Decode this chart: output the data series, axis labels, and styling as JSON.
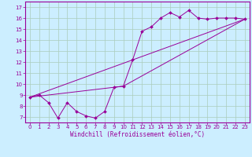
{
  "xlabel": "Windchill (Refroidissement éolien,°C)",
  "background_color": "#cceeff",
  "grid_color": "#aaccbb",
  "line_color": "#990099",
  "spine_color": "#990099",
  "xlim": [
    -0.5,
    23.5
  ],
  "ylim": [
    6.5,
    17.5
  ],
  "xticks": [
    0,
    1,
    2,
    3,
    4,
    5,
    6,
    7,
    8,
    9,
    10,
    11,
    12,
    13,
    14,
    15,
    16,
    17,
    18,
    19,
    20,
    21,
    22,
    23
  ],
  "yticks": [
    7,
    8,
    9,
    10,
    11,
    12,
    13,
    14,
    15,
    16,
    17
  ],
  "line1_x": [
    0,
    1,
    2,
    3,
    4,
    5,
    6,
    7,
    8,
    9,
    10,
    11,
    12,
    13,
    14,
    15,
    16,
    17,
    18,
    19,
    20,
    21,
    22,
    23
  ],
  "line1_y": [
    8.8,
    9.0,
    8.3,
    6.9,
    8.3,
    7.5,
    7.1,
    6.9,
    7.5,
    9.7,
    9.8,
    12.2,
    14.8,
    15.2,
    16.0,
    16.5,
    16.1,
    16.7,
    16.0,
    15.9,
    16.0,
    16.0,
    16.0,
    15.9
  ],
  "line2_x": [
    0,
    23
  ],
  "line2_y": [
    8.8,
    15.9
  ],
  "line3_x": [
    0,
    10,
    23
  ],
  "line3_y": [
    8.8,
    9.8,
    15.9
  ],
  "xlabel_fontsize": 5.5,
  "tick_fontsize": 5.0,
  "linewidth": 0.7,
  "markersize": 2.0
}
